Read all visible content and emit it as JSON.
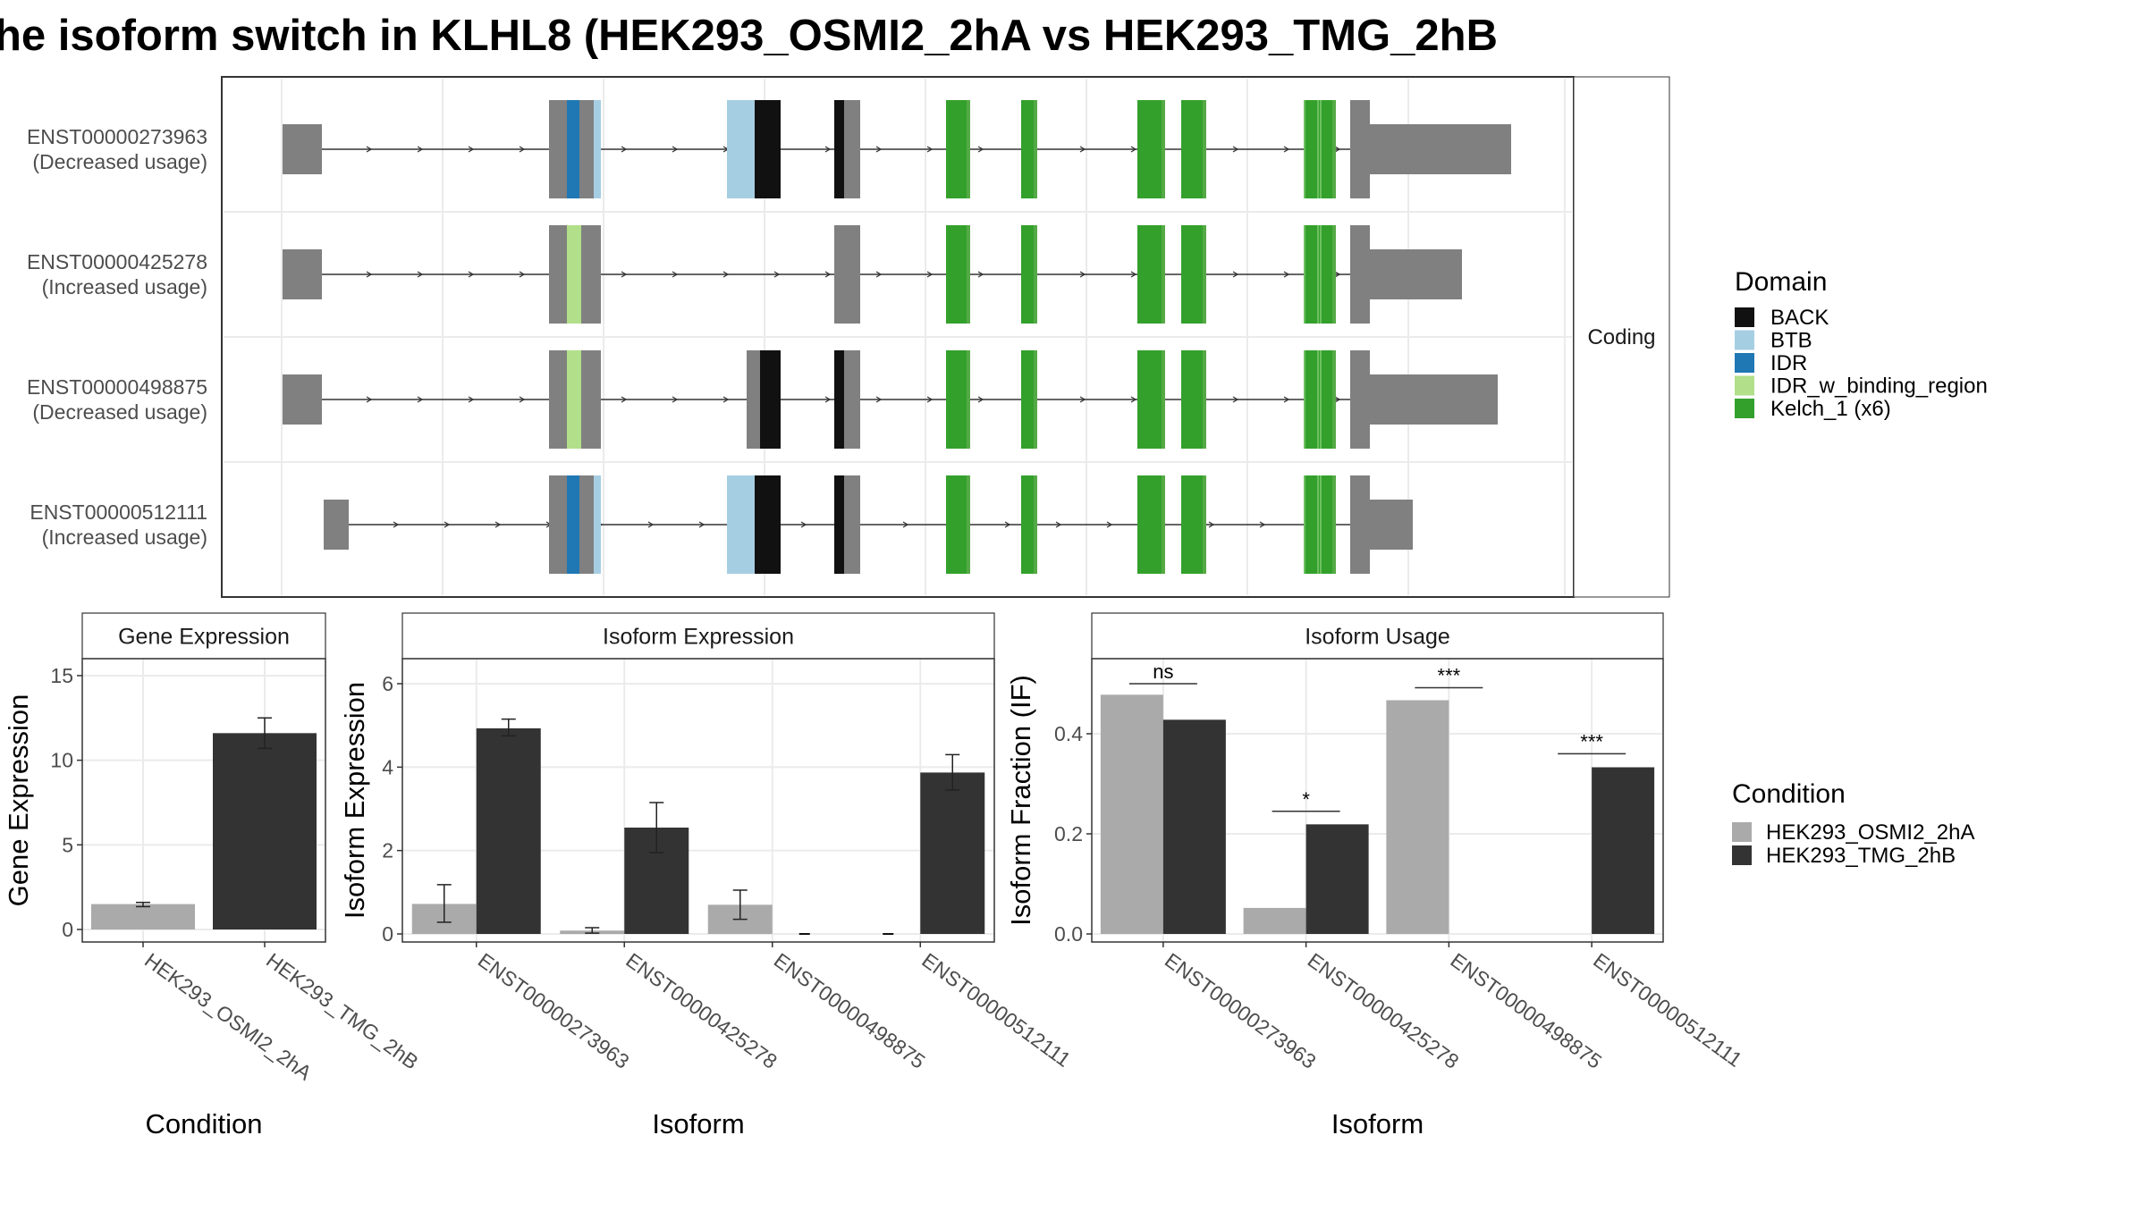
{
  "title": "he isoform switch in KLHL8 (HEK293_OSMI2_2hA vs HEK293_TMG_2hB",
  "chart_data": [
    {
      "type": "gene-structure",
      "facet_label": "Coding",
      "transcripts": [
        {
          "id": "ENST00000273963",
          "usage": "(Decreased usage)"
        },
        {
          "id": "ENST00000425278",
          "usage": "(Increased usage)"
        },
        {
          "id": "ENST00000498875",
          "usage": "(Decreased usage)"
        },
        {
          "id": "ENST00000512111",
          "usage": "(Increased usage)"
        }
      ],
      "legend": {
        "title": "Domain",
        "entries": [
          {
            "name": "BACK",
            "color": "#111111"
          },
          {
            "name": "BTB",
            "color": "#A6CEE3"
          },
          {
            "name": "IDR",
            "color": "#1F78B4"
          },
          {
            "name": "IDR_w_binding_region",
            "color": "#B2DF8A"
          },
          {
            "name": "Kelch_1 (x6)",
            "color": "#33A02C"
          }
        ]
      },
      "exon_color": "#808080"
    },
    {
      "type": "bar",
      "facet_label": "Gene Expression",
      "xlabel": "Condition",
      "ylabel": "Gene Expression",
      "ylim": [
        0,
        16
      ],
      "yticks": [
        0,
        5,
        10,
        15
      ],
      "categories": [
        "HEK293_OSMI2_2hA",
        "HEK293_TMG_2hB"
      ],
      "values": [
        1.5,
        11.6
      ],
      "errors": [
        [
          1.35,
          1.6
        ],
        [
          10.7,
          12.5
        ]
      ],
      "colors": [
        "#AAAAAA",
        "#333333"
      ]
    },
    {
      "type": "bar",
      "facet_label": "Isoform Expression",
      "xlabel": "Isoform",
      "ylabel": "Isoform Expression",
      "ylim": [
        0,
        6.6
      ],
      "yticks": [
        0,
        2,
        4,
        6
      ],
      "categories": [
        "ENST00000273963",
        "ENST00000425278",
        "ENST00000498875",
        "ENST00000512111"
      ],
      "series": [
        {
          "name": "HEK293_OSMI2_2hA",
          "color": "#AAAAAA",
          "values": [
            0.72,
            0.08,
            0.7,
            0.0
          ],
          "errors": [
            [
              0.28,
              1.18
            ],
            [
              0.02,
              0.15
            ],
            [
              0.35,
              1.05
            ],
            [
              0.0,
              0.0
            ]
          ]
        },
        {
          "name": "HEK293_TMG_2hB",
          "color": "#333333",
          "values": [
            4.93,
            2.55,
            0.0,
            3.87
          ],
          "errors": [
            [
              4.75,
              5.15
            ],
            [
              1.95,
              3.15
            ],
            [
              0.0,
              0.0
            ],
            [
              3.45,
              4.3
            ]
          ]
        }
      ]
    },
    {
      "type": "bar",
      "facet_label": "Isoform Usage",
      "xlabel": "Isoform",
      "ylabel": "Isoform Fraction (IF)",
      "ylim": [
        0,
        0.55
      ],
      "yticks": [
        0.0,
        0.2,
        0.4
      ],
      "ytick_labels": [
        "0.0",
        "0.2",
        "0.4"
      ],
      "categories": [
        "ENST00000273963",
        "ENST00000425278",
        "ENST00000498875",
        "ENST00000512111"
      ],
      "series": [
        {
          "name": "HEK293_OSMI2_2hA",
          "color": "#AAAAAA",
          "values": [
            0.478,
            0.052,
            0.467,
            0.0
          ]
        },
        {
          "name": "HEK293_TMG_2hB",
          "color": "#333333",
          "values": [
            0.428,
            0.219,
            0.0,
            0.333
          ]
        }
      ],
      "significance": [
        "ns",
        "*",
        "***",
        "***"
      ],
      "significance_y": [
        0.5,
        0.245,
        0.492,
        0.36
      ]
    }
  ],
  "condition_legend": {
    "title": "Condition",
    "entries": [
      {
        "name": "HEK293_OSMI2_2hA",
        "color": "#AAAAAA"
      },
      {
        "name": "HEK293_TMG_2hB",
        "color": "#333333"
      }
    ]
  }
}
